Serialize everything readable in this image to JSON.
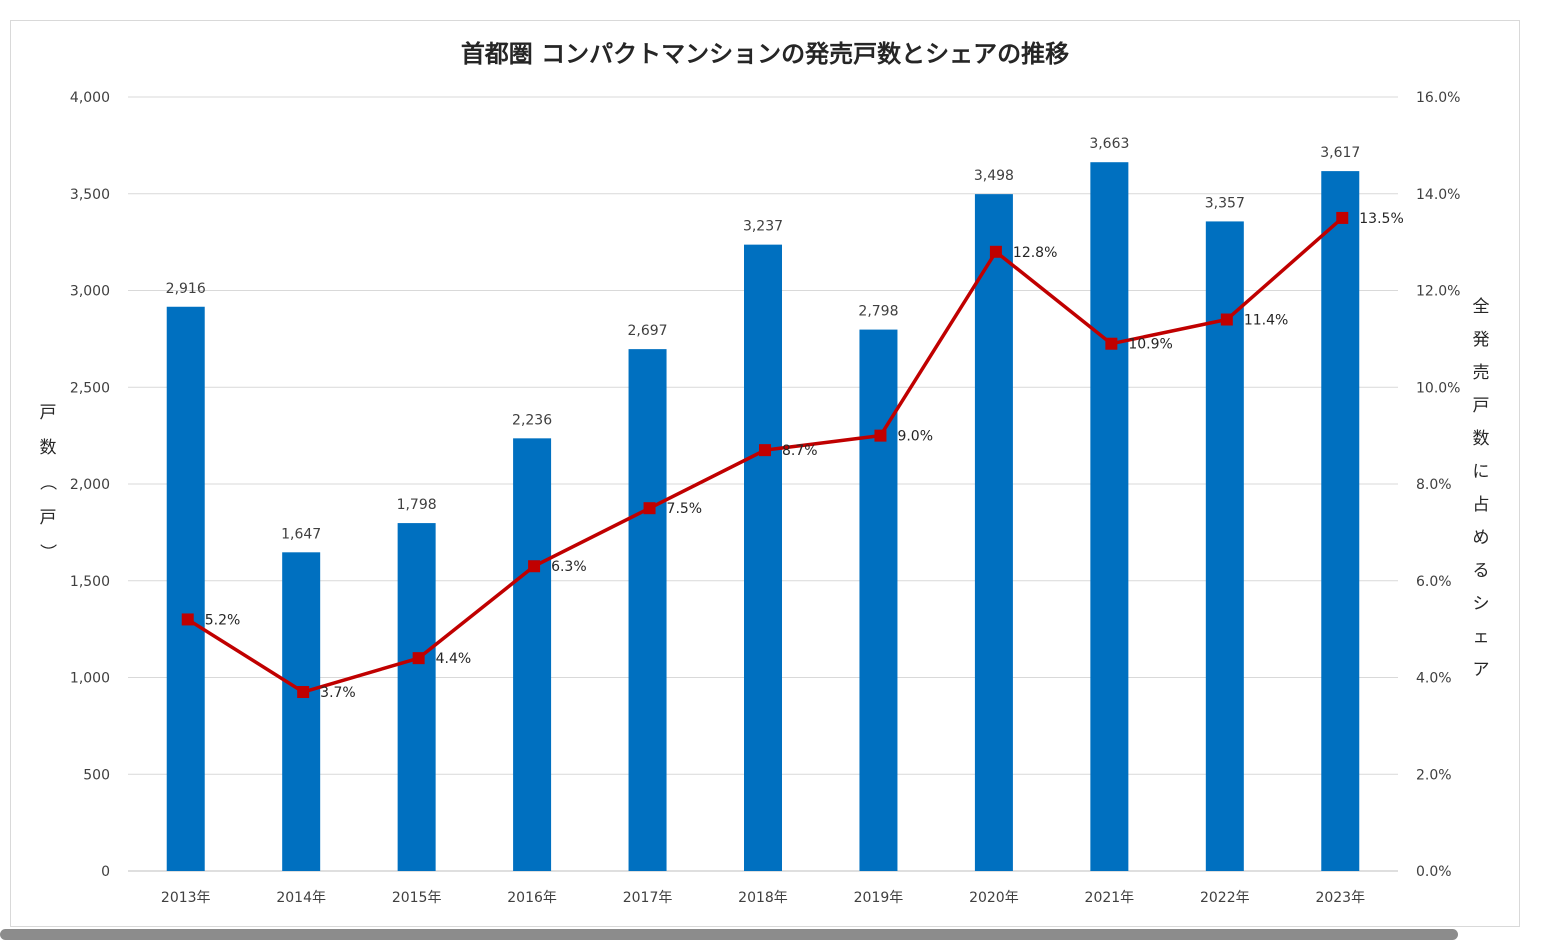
{
  "chart_data": {
    "type": "bar",
    "title": "首都圏 コンパクトマンションの発売戸数とシェアの推移",
    "ylabel": "戸数（戸）",
    "y2label": "全発売戸数に占めるシェア",
    "categories": [
      "2013年",
      "2014年",
      "2015年",
      "2016年",
      "2017年",
      "2018年",
      "2019年",
      "2020年",
      "2021年",
      "2022年",
      "2023年"
    ],
    "ylim": [
      0,
      4000
    ],
    "y2lim": [
      0,
      16
    ],
    "yticks": [
      "0",
      "500",
      "1,000",
      "1,500",
      "2,000",
      "2,500",
      "3,000",
      "3,500",
      "4,000"
    ],
    "y2ticks": [
      "0.0%",
      "2.0%",
      "4.0%",
      "6.0%",
      "8.0%",
      "10.0%",
      "12.0%",
      "14.0%",
      "16.0%"
    ],
    "grid": true,
    "series": [
      {
        "type": "bar",
        "axis": "left",
        "color": "#0070c0",
        "values": [
          2916,
          1647,
          1798,
          2236,
          2697,
          3237,
          2798,
          3498,
          3663,
          3357,
          3617
        ],
        "labels": [
          "2,916",
          "1,647",
          "1,798",
          "2,236",
          "2,697",
          "3,237",
          "2,798",
          "3,498",
          "3,663",
          "3,357",
          "3,617"
        ]
      },
      {
        "type": "line",
        "axis": "right",
        "color": "#c00000",
        "marker": "square",
        "values": [
          5.2,
          3.7,
          4.4,
          6.3,
          7.5,
          8.7,
          9.0,
          12.8,
          10.9,
          11.4,
          13.5
        ],
        "labels": [
          "5.2%",
          "3.7%",
          "4.4%",
          "6.3%",
          "7.5%",
          "8.7%",
          "9.0%",
          "12.8%",
          "10.9%",
          "11.4%",
          "13.5%"
        ]
      }
    ]
  }
}
